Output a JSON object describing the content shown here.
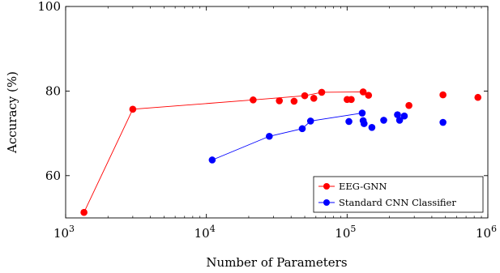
{
  "chart_data": {
    "type": "scatter",
    "xlabel": "Number of Parameters",
    "ylabel": "Accuracy (%)",
    "xscale": "log",
    "xlim": [
      1000,
      1000000
    ],
    "ylim": [
      50,
      100
    ],
    "x_ticks": [
      {
        "base": "10",
        "exp": "3",
        "value": 1000
      },
      {
        "base": "10",
        "exp": "4",
        "value": 10000
      },
      {
        "base": "10",
        "exp": "5",
        "value": 100000
      },
      {
        "base": "10",
        "exp": "6",
        "value": 1000000
      }
    ],
    "y_ticks": [
      {
        "label": "60",
        "value": 60
      },
      {
        "label": "80",
        "value": 80
      },
      {
        "label": "100",
        "value": 100
      }
    ],
    "grid": false,
    "legend_position": "bottom-right",
    "series": [
      {
        "name": "EEG-GNN",
        "color": "#ff0000",
        "frontier": [
          [
            1350,
            51.3
          ],
          [
            3000,
            75.7
          ],
          [
            21500,
            77.9
          ],
          [
            50000,
            78.9
          ],
          [
            66000,
            79.7
          ],
          [
            130000,
            79.8
          ],
          [
            142000,
            79.0
          ]
        ],
        "points": [
          [
            1350,
            51.3
          ],
          [
            3000,
            75.7
          ],
          [
            21500,
            77.9
          ],
          [
            33000,
            77.7
          ],
          [
            42000,
            77.6
          ],
          [
            50000,
            78.9
          ],
          [
            58000,
            78.3
          ],
          [
            66000,
            79.7
          ],
          [
            100000,
            78.0
          ],
          [
            107000,
            78.0
          ],
          [
            130000,
            79.8
          ],
          [
            142000,
            79.0
          ],
          [
            275000,
            76.6
          ],
          [
            480000,
            79.1
          ],
          [
            850000,
            78.5
          ]
        ]
      },
      {
        "name": "Standard CNN Classifier",
        "color": "#0000ff",
        "frontier": [
          [
            11000,
            63.7
          ],
          [
            28000,
            69.3
          ],
          [
            48000,
            71.1
          ],
          [
            55000,
            72.9
          ],
          [
            128000,
            74.8
          ]
        ],
        "points": [
          [
            11000,
            63.7
          ],
          [
            28000,
            69.3
          ],
          [
            48000,
            71.1
          ],
          [
            55000,
            72.9
          ],
          [
            103000,
            72.8
          ],
          [
            128000,
            74.8
          ],
          [
            130000,
            73.0
          ],
          [
            132000,
            72.3
          ],
          [
            150000,
            71.4
          ],
          [
            182000,
            73.1
          ],
          [
            228000,
            74.4
          ],
          [
            236000,
            73.1
          ],
          [
            255000,
            74.1
          ],
          [
            480000,
            72.6
          ]
        ]
      }
    ]
  }
}
